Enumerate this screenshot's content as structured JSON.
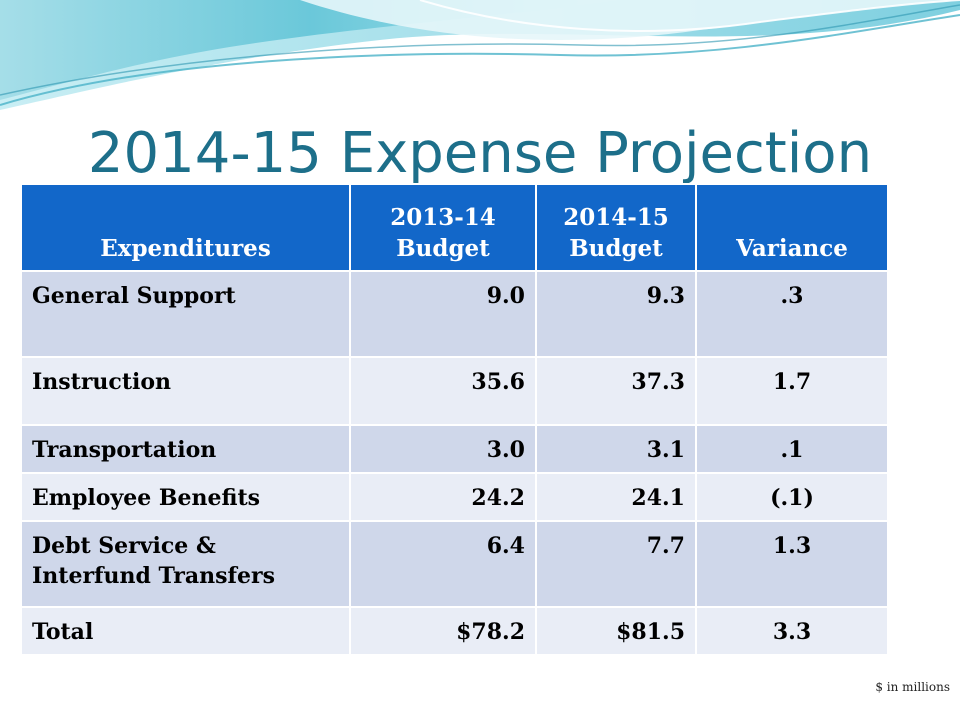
{
  "title": "2014-15  Expense Projection",
  "table": {
    "headers": {
      "expenditures": "Expenditures",
      "budget_2013_line1": "2013-14",
      "budget_2013_line2": "Budget",
      "budget_2014_line1": "2014-15",
      "budget_2014_line2": "Budget",
      "variance": "Variance"
    },
    "rows": [
      {
        "name_line1": "General Support",
        "name_line2": "",
        "budget_2013": "9.0",
        "budget_2014": "9.3",
        "variance": ".3"
      },
      {
        "name_line1": "Instruction",
        "name_line2": "",
        "budget_2013": "35.6",
        "budget_2014": "37.3",
        "variance": "1.7"
      },
      {
        "name_line1": "Transportation",
        "name_line2": "",
        "budget_2013": "3.0",
        "budget_2014": "3.1",
        "variance": ".1"
      },
      {
        "name_line1": "Employee Benefits",
        "name_line2": "",
        "budget_2013": "24.2",
        "budget_2014": "24.1",
        "variance": "(.1)"
      },
      {
        "name_line1": "Debt Service &",
        "name_line2": "Interfund Transfers",
        "budget_2013": "6.4",
        "budget_2014": "7.7",
        "variance": "1.3"
      },
      {
        "name_line1": "Total",
        "name_line2": "",
        "budget_2013": "$78.2",
        "budget_2014": "$81.5",
        "variance": "3.3"
      }
    ]
  },
  "footnote": "$ in millions",
  "colors": {
    "title": "#1d6f8a",
    "header_bg": "#1267c9",
    "row_dark": "#cfd7ea",
    "row_light": "#e9edf6"
  }
}
